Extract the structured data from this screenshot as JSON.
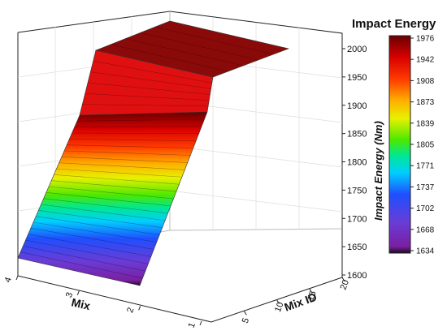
{
  "chart_data": {
    "type": "surface3d",
    "title": "",
    "zlabel": "Impact Energy (Nm)",
    "xlabel": "Mix",
    "ylabel": "Mix ID",
    "x_ticks": [
      "4",
      "3",
      "2",
      "1"
    ],
    "y_ticks": [
      "5",
      "10",
      "15",
      "20"
    ],
    "z_ticks": [
      "1600",
      "1650",
      "1700",
      "1750",
      "1800",
      "1850",
      "1900",
      "1950",
      "2000"
    ],
    "zlim": [
      1600,
      2000
    ],
    "profile": [
      {
        "x": 4,
        "z": 1634
      },
      {
        "x": 2.6,
        "z": 1885
      },
      {
        "x": 1.7,
        "z": 1976
      },
      {
        "x": 1,
        "z": 1976
      }
    ],
    "colorbar": {
      "title": "Impact Energy",
      "ticks": [
        "1976",
        "1942",
        "1908",
        "1873",
        "1839",
        "1805",
        "1771",
        "1737",
        "1702",
        "1668",
        "1634"
      ],
      "range": [
        1634,
        1976
      ]
    }
  }
}
